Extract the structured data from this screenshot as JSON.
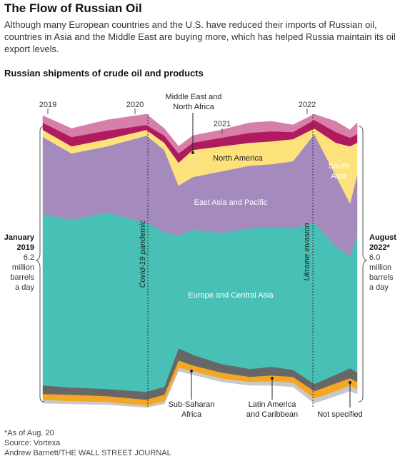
{
  "header": {
    "title": "The Flow of Russian Oil",
    "subtitle": "Although many European countries and the U.S. have reduced their imports of Russian oil, countries in Asia and the Middle East are buying more, which has helped Russia maintain its oil export levels."
  },
  "chart_data": {
    "type": "area",
    "title": "Russian shipments of crude oil and products",
    "x_ticks": [
      "2019",
      "2020",
      "2021",
      "2022"
    ],
    "series": [
      {
        "name": "Not specified",
        "color": "#c8c8c8"
      },
      {
        "name": "Latin America and Caribbean",
        "color": "#f5a623"
      },
      {
        "name": "Sub-Saharan Africa",
        "color": "#676767"
      },
      {
        "name": "Europe and Central Asia",
        "color": "#48c0b5"
      },
      {
        "name": "East Asia and Pacific",
        "color": "#a58bbd"
      },
      {
        "name": "North America",
        "color": "#fde27c"
      },
      {
        "name": "Middle East and North Africa",
        "color": "#b01b5f"
      },
      {
        "name": "South Asia",
        "color": "#d77ea9"
      }
    ],
    "start_label": {
      "line1": "January",
      "line2": "2019",
      "value": "6.2",
      "unit1": "million",
      "unit2": "barrels",
      "unit3": "a day"
    },
    "end_label": {
      "line1": "August",
      "line2": "2022*",
      "value": "6.0",
      "unit1": "million",
      "unit2": "barrels",
      "unit3": "a day"
    },
    "annotations": {
      "covid": "Covid-19 pandemic",
      "ukraine": "Ukraine invasion",
      "mena_line1": "Middle East and",
      "mena_line2": "North Africa",
      "north_america": "North America",
      "south_asia_line1": "South",
      "south_asia_line2": "Asia",
      "east_asia": "East Asia and Pacific",
      "europe": "Europe and Central Asia",
      "ssa_line1": "Sub-Saharan",
      "ssa_line2": "Africa",
      "latam_line1": "Latin America",
      "latam_line2": "and Caribbean",
      "not_specified": "Not specified"
    }
  },
  "footer": {
    "note": "*As of Aug. 20",
    "source": "Source: Vortexa",
    "credit": "Andrew Barnett/THE WALL STREET JOURNAL"
  }
}
